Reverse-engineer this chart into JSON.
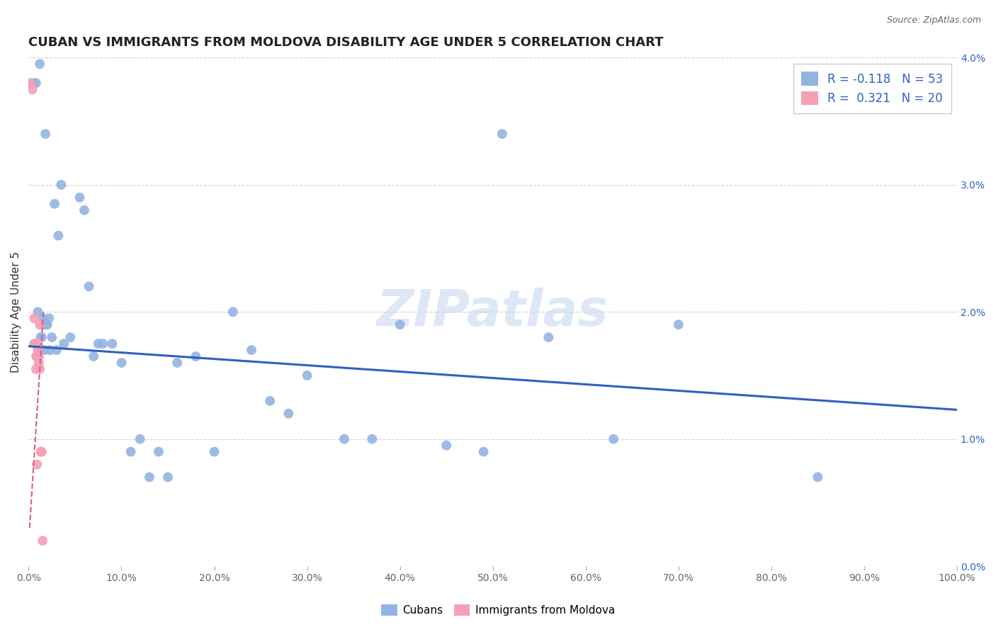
{
  "title": "CUBAN VS IMMIGRANTS FROM MOLDOVA DISABILITY AGE UNDER 5 CORRELATION CHART",
  "source": "Source: ZipAtlas.com",
  "xlabel": "",
  "ylabel": "Disability Age Under 5",
  "watermark": "ZIPatlas",
  "legend_cubans": "Cubans",
  "legend_moldova": "Immigrants from Moldova",
  "r_cubans": -0.118,
  "n_cubans": 53,
  "r_moldova": 0.321,
  "n_moldova": 20,
  "xmin": 0.0,
  "xmax": 1.0,
  "ymin": 0.0,
  "ymax": 0.04,
  "blue_scatter_x": [
    0.012,
    0.018,
    0.008,
    0.022,
    0.005,
    0.015,
    0.01,
    0.02,
    0.014,
    0.016,
    0.013,
    0.011,
    0.017,
    0.019,
    0.023,
    0.025,
    0.03,
    0.035,
    0.038,
    0.028,
    0.032,
    0.045,
    0.055,
    0.06,
    0.065,
    0.07,
    0.075,
    0.08,
    0.09,
    0.1,
    0.11,
    0.12,
    0.13,
    0.14,
    0.15,
    0.16,
    0.18,
    0.2,
    0.22,
    0.24,
    0.26,
    0.28,
    0.3,
    0.34,
    0.37,
    0.4,
    0.45,
    0.49,
    0.51,
    0.56,
    0.63,
    0.7,
    0.85
  ],
  "blue_scatter_y": [
    0.0395,
    0.034,
    0.038,
    0.0195,
    0.038,
    0.0195,
    0.02,
    0.019,
    0.018,
    0.019,
    0.018,
    0.017,
    0.017,
    0.019,
    0.017,
    0.018,
    0.017,
    0.03,
    0.0175,
    0.0285,
    0.026,
    0.018,
    0.029,
    0.028,
    0.022,
    0.0165,
    0.0175,
    0.0175,
    0.0175,
    0.016,
    0.009,
    0.01,
    0.007,
    0.009,
    0.007,
    0.016,
    0.0165,
    0.009,
    0.02,
    0.017,
    0.013,
    0.012,
    0.015,
    0.01,
    0.01,
    0.019,
    0.0095,
    0.009,
    0.034,
    0.018,
    0.01,
    0.019,
    0.007
  ],
  "pink_scatter_x": [
    0.002,
    0.004,
    0.006,
    0.006,
    0.007,
    0.008,
    0.008,
    0.008,
    0.009,
    0.009,
    0.01,
    0.01,
    0.01,
    0.011,
    0.011,
    0.012,
    0.012,
    0.013,
    0.014,
    0.015
  ],
  "pink_scatter_y": [
    0.038,
    0.0375,
    0.0195,
    0.0175,
    0.0175,
    0.0175,
    0.0165,
    0.0155,
    0.0165,
    0.008,
    0.0175,
    0.017,
    0.0165,
    0.0165,
    0.016,
    0.019,
    0.0155,
    0.009,
    0.009,
    0.002
  ],
  "blue_line_x": [
    0.0,
    1.0
  ],
  "blue_line_y": [
    0.0173,
    0.0123
  ],
  "pink_line_x": [
    0.001,
    0.016
  ],
  "pink_line_y": [
    0.003,
    0.02
  ],
  "blue_color": "#92b4e3",
  "pink_color": "#f4a0b5",
  "blue_line_color": "#3060c0",
  "pink_line_color": "#d06080",
  "background_color": "#ffffff",
  "grid_color": "#cccccc",
  "title_fontsize": 13,
  "axis_label_fontsize": 11,
  "tick_fontsize": 10,
  "legend_fontsize": 12,
  "watermark_fontsize": 52,
  "watermark_color": "#c8d8f0",
  "watermark_alpha": 0.6
}
